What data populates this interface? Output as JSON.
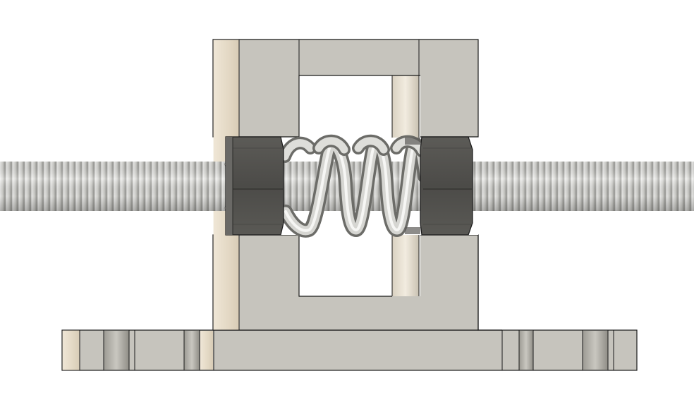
{
  "scene": {
    "subject": "lead-screw-anti-backlash-nut-assembly",
    "view": "front-orthographic",
    "colors": {
      "background": "#ffffff",
      "bracket_face": "#c6c4bd",
      "bracket_edge": "#1a1a1a",
      "bracket_side_tan": "#e6dccb",
      "bracket_shadow": "#a9a69d",
      "nut_dark": "#4e4d4a",
      "nut_mid": "#5f5e5a",
      "screw_light": "#d9d9d6",
      "screw_dark": "#8c8c88",
      "spring_highlight": "#eeeeec",
      "spring_shade": "#7d7d79"
    }
  }
}
